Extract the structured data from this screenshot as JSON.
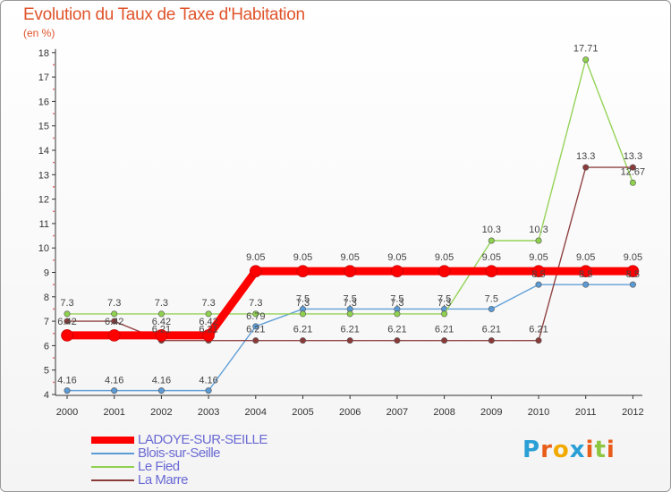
{
  "chart_data": {
    "type": "line",
    "title": "Evolution du Taux de Taxe d'Habitation",
    "subtitle": "(en %)",
    "xlabel": "",
    "ylabel": "(en %)",
    "categories": [
      "2000",
      "2001",
      "2002",
      "2003",
      "2004",
      "2005",
      "2006",
      "2007",
      "2008",
      "2009",
      "2010",
      "2011",
      "2012"
    ],
    "ylim": [
      4,
      18
    ],
    "yticks": [
      "4",
      "5",
      "6",
      "7",
      "8",
      "9",
      "10",
      "11",
      "12",
      "13",
      "14",
      "15",
      "16",
      "17",
      "18"
    ],
    "grid": false,
    "legend_position": "bottom-left",
    "series": [
      {
        "name": "LADOYE-SUR-SEILLE",
        "color": "#ff0000",
        "values": [
          6.42,
          6.42,
          6.42,
          6.42,
          9.05,
          9.05,
          9.05,
          9.05,
          9.05,
          9.05,
          9.05,
          9.05,
          9.05
        ],
        "labels": [
          "6.42",
          "6.42",
          "6.42",
          "6.42",
          "9.05",
          "9.05",
          "9.05",
          "9.05",
          "9.05",
          "9.05",
          "9.05",
          "9.05",
          "9.05"
        ]
      },
      {
        "name": "Blois-sur-Seille",
        "color": "#5b9bd5",
        "values": [
          4.16,
          4.16,
          4.16,
          4.16,
          6.79,
          7.5,
          7.5,
          7.5,
          7.5,
          7.5,
          8.5,
          8.5,
          8.5
        ],
        "labels": [
          "4.16",
          "4.16",
          "4.16",
          "4.16",
          "6.79",
          "7.5",
          "7.5",
          "7.5",
          "7.5",
          "7.5",
          "8.5",
          "8.5",
          "8.5"
        ]
      },
      {
        "name": "Le Fied",
        "color": "#8fd14f",
        "values": [
          7.3,
          7.3,
          7.3,
          7.3,
          7.3,
          7.3,
          7.3,
          7.3,
          7.3,
          10.3,
          10.3,
          17.71,
          12.67
        ],
        "labels": [
          "7.3",
          "7.3",
          "7.3",
          "7.3",
          "7.3",
          "7.3",
          "7.3",
          "7.3",
          "7.3",
          "10.3",
          "10.3",
          "17.71",
          "12.67"
        ]
      },
      {
        "name": "La Marre",
        "color": "#8b3a3a",
        "values": [
          7,
          7,
          6.21,
          6.21,
          6.21,
          6.21,
          6.21,
          6.21,
          6.21,
          6.21,
          6.21,
          13.3,
          13.3
        ],
        "labels": [
          "",
          "",
          "6.21",
          "6.21",
          "6.21",
          "6.21",
          "6.21",
          "6.21",
          "6.21",
          "6.21",
          "6.21",
          "13.3",
          "13.3"
        ]
      }
    ]
  },
  "logo": {
    "text": [
      "P",
      "r",
      "o",
      "x",
      "i",
      "t",
      "i"
    ],
    "colors": [
      "#2a9fd6",
      "#e85d1a",
      "#f2a900",
      "#2a9fd6",
      "#e85d1a",
      "#8dc63f",
      "#e85d1a"
    ]
  }
}
